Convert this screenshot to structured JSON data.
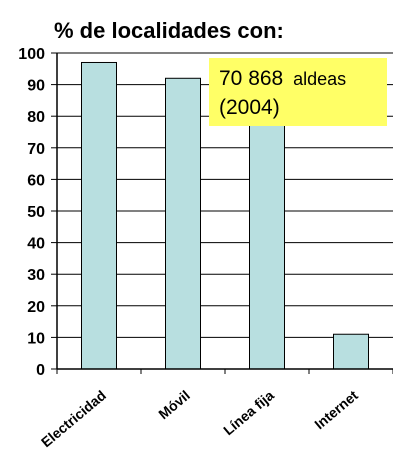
{
  "chart_data": {
    "type": "bar",
    "title": "% de localidades con:",
    "categories": [
      "Electricidad",
      "Móvil",
      "Línea fija",
      "Internet"
    ],
    "values": [
      97,
      92,
      81,
      11
    ],
    "ylim": [
      0,
      100
    ],
    "yticks": [
      "0",
      "10",
      "20",
      "30",
      "40",
      "50",
      "60",
      "70",
      "80",
      "90",
      "100"
    ],
    "grid": true,
    "bar_color": "#b8dfe0",
    "annotation": {
      "line1_number": "70 868",
      "line1_unit": "aldeas",
      "line2": "(2004)",
      "background": "#ffff66"
    }
  }
}
